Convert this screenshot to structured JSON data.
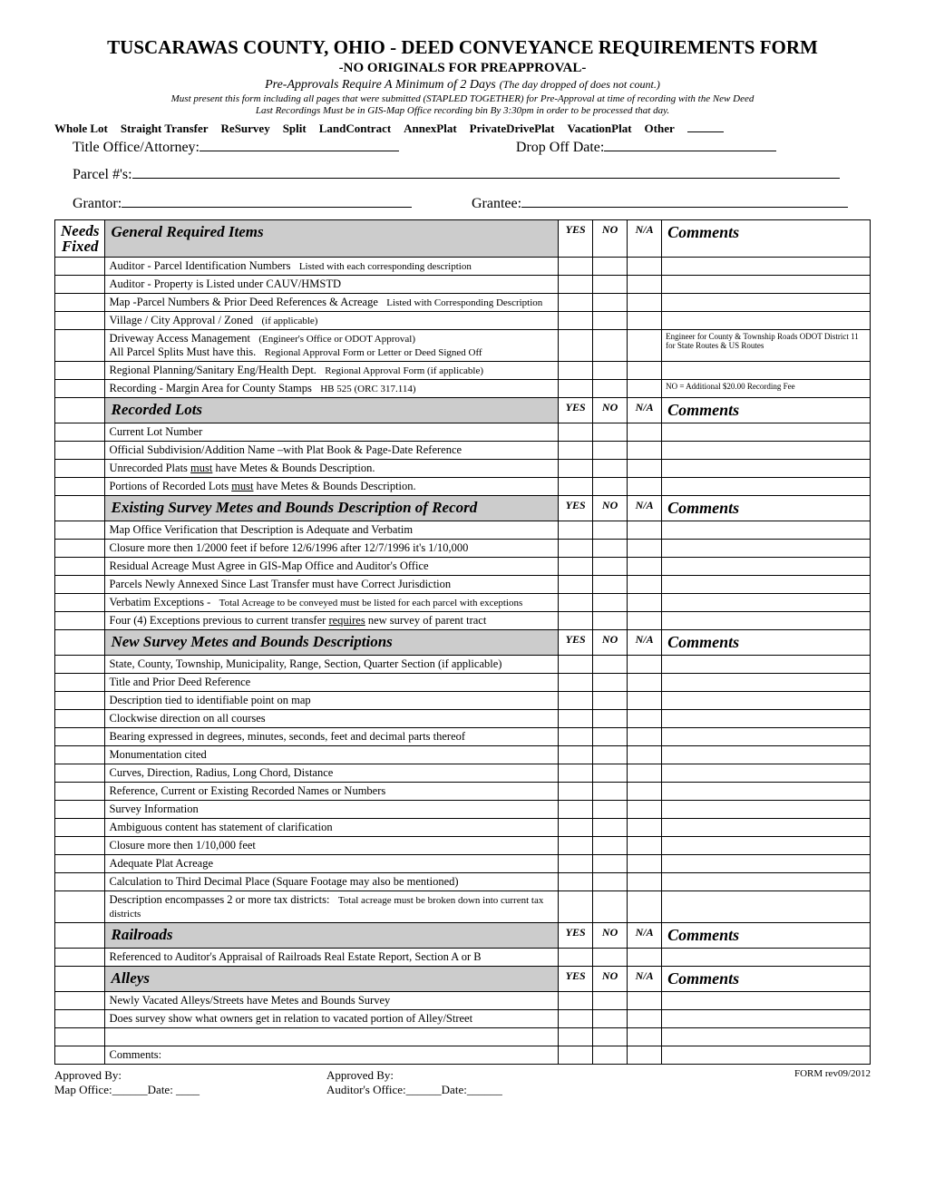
{
  "header": {
    "title": "TUSCARAWAS COUNTY, OHIO - DEED CONVEYANCE REQUIREMENTS FORM",
    "subtitle": "-NO ORIGINALS FOR PREAPPROVAL-",
    "preapproval": "Pre-Approvals Require A Minimum of 2 Days",
    "daynote": "(The day dropped of does not count.)",
    "present": "Must present this form including all pages that were submitted (STAPLED TOGETHER) for Pre-Approval at time of recording with the New Deed",
    "lastrec": "Last Recordings Must be in GIS-Map Office recording bin By 3:30pm in order to be processed that day."
  },
  "types": [
    "Whole Lot",
    "Straight Transfer",
    "ReSurvey",
    "Split",
    "LandContract",
    "AnnexPlat",
    "PrivateDrivePlat",
    "VacationPlat",
    "Other"
  ],
  "fields": {
    "title_office": "Title Office/Attorney:",
    "dropoff": "Drop Off Date:",
    "parcel": "Parcel #'s:",
    "grantor": "Grantor:",
    "grantee": "Grantee:"
  },
  "col_headers": {
    "nf": "Needs Fixed",
    "yes": "YES",
    "no": "NO",
    "na": "N/A",
    "cmt": "Comments"
  },
  "sections": [
    {
      "name": "General Required Items",
      "rows": [
        {
          "main": "Auditor - ",
          "sub": "Parcel Identification Numbers",
          "suffix": "Listed with each corresponding description"
        },
        {
          "main": "Auditor - ",
          "sub": "Property is Listed under CAUV/HMSTD"
        },
        {
          "main": "Map -",
          "sub": "Parcel Numbers & Prior Deed References & Acreage ",
          "suffix": "Listed with Corresponding Description"
        },
        {
          "main": "Village / City Approval / Zoned",
          "suffix": "(if applicable)"
        },
        {
          "main": "Driveway Access Management",
          "suffix": "(Engineer's Office or ODOT Approval)",
          "line2_main": "All Parcel Splits Must have this.",
          "line2_suffix": "Regional Approval Form or Letter or Deed Signed Off",
          "cmt": "Engineer for County & Township Roads ODOT District 11 for State Routes & US Routes"
        },
        {
          "main": "Regional Planning/Sanitary Eng/Health Dept.",
          "suffix": "Regional Approval Form (if applicable)"
        },
        {
          "main": "Recording - Margin Area for County Stamps ",
          "suffix": "HB 525 (ORC 317.114)",
          "cmt": "NO = Additional $20.00 Recording Fee"
        }
      ]
    },
    {
      "name": "Recorded Lots",
      "rows": [
        {
          "main": "Current Lot Number"
        },
        {
          "main": "Official Subdivision/Addition Name –with Plat Book & Page-Date Reference"
        },
        {
          "main": "Unrecorded Plats ",
          "under": "must",
          "after": " have Metes & Bounds Description."
        },
        {
          "main": "Portions of Recorded Lots ",
          "under": "must",
          "after": " have Metes & Bounds Description."
        }
      ]
    },
    {
      "name": "Existing Survey Metes and Bounds Description of Record",
      "rows": [
        {
          "main": "Map Office Verification that Description is Adequate and Verbatim"
        },
        {
          "main": "Closure more then 1/2000 feet if before 12/6/1996 after 12/7/1996 it's 1/10,000"
        },
        {
          "main": "Residual Acreage Must Agree in GIS-Map Office and Auditor's Office"
        },
        {
          "main": "Parcels Newly Annexed Since Last Transfer must have Correct Jurisdiction"
        },
        {
          "main": "Verbatim Exceptions  - ",
          "suffix": "Total Acreage to be conveyed  must be listed for each parcel with exceptions"
        },
        {
          "main": "Four (4) Exceptions previous to current transfer ",
          "under": "requires",
          "after": " new survey of parent tract"
        }
      ]
    },
    {
      "name": "New Survey Metes and Bounds Descriptions",
      "rows": [
        {
          "main": "State, County, Township, Municipality, Range, Section, Quarter Section (if applicable)"
        },
        {
          "main": "Title and Prior Deed Reference"
        },
        {
          "main": "Description tied to identifiable point on map"
        },
        {
          "main": "Clockwise direction on all courses"
        },
        {
          "main": "Bearing expressed in degrees, minutes, seconds, feet and decimal parts thereof"
        },
        {
          "main": "Monumentation cited"
        },
        {
          "main": "Curves, Direction, Radius, Long Chord, Distance"
        },
        {
          "main": "Reference, Current or Existing Recorded Names or Numbers"
        },
        {
          "main": "Survey Information"
        },
        {
          "main": "Ambiguous content has statement of clarification"
        },
        {
          "main": "Closure more then 1/10,000 feet"
        },
        {
          "main": "Adequate Plat Acreage"
        },
        {
          "main": "Calculation to Third Decimal Place (Square Footage may also be mentioned)"
        },
        {
          "main": "Description encompasses 2 or more tax districts: ",
          "suffix": "Total acreage must be broken down into current tax districts"
        }
      ]
    },
    {
      "name": "Railroads",
      "rows": [
        {
          "main": "Referenced to Auditor's Appraisal of Railroads Real Estate Report, Section A or B"
        }
      ]
    },
    {
      "name": "Alleys",
      "rows": [
        {
          "main": "Newly Vacated Alleys/Streets have Metes and Bounds Survey"
        },
        {
          "main": "Does survey show what owners get in relation to vacated portion of Alley/Street"
        }
      ]
    }
  ],
  "comments_label": "Comments:",
  "approvals": {
    "approved_by": "Approved By:",
    "map_office": "Map Office:______Date: ____",
    "auditor_office": "Auditor's Office:______Date:______",
    "form_rev": "FORM rev09/2012"
  }
}
